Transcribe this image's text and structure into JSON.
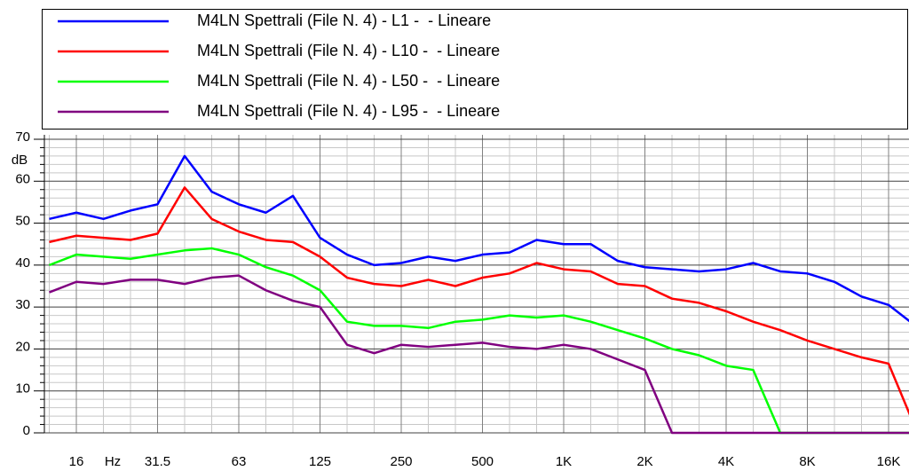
{
  "chart_data": {
    "type": "line",
    "x_label": "Hz",
    "y_label": "dB",
    "categories": [
      null,
      "16",
      null,
      null,
      "31.5",
      null,
      null,
      "63",
      null,
      null,
      "125",
      null,
      null,
      "250",
      null,
      null,
      "500",
      null,
      null,
      "1K",
      null,
      null,
      "2K",
      null,
      null,
      "4K",
      null,
      null,
      "8K",
      null,
      null,
      "16K",
      null
    ],
    "series": [
      {
        "name": "M4LN Spettrali (File N. 4) - L1 -  - Lineare",
        "color": "#0000ff",
        "values": [
          51,
          52.5,
          51,
          53,
          54.5,
          66,
          57.5,
          54.5,
          52.5,
          56.5,
          46.5,
          42.5,
          40,
          40.5,
          42,
          41,
          42.5,
          43,
          46,
          45,
          45,
          41,
          39.5,
          39,
          38.5,
          39,
          40.5,
          38.5,
          38,
          36,
          32.5,
          30.5,
          25.5
        ]
      },
      {
        "name": "M4LN Spettrali (File N. 4) - L10 -  - Lineare",
        "color": "#ff0000",
        "values": [
          45.5,
          47,
          46.5,
          46,
          47.5,
          58.5,
          51,
          48,
          46,
          45.5,
          42,
          37,
          35.5,
          35,
          36.5,
          35,
          37,
          38,
          40.5,
          39,
          38.5,
          35.5,
          35,
          32,
          31,
          29,
          26.5,
          24.5,
          22,
          20,
          18,
          16.5,
          1
        ]
      },
      {
        "name": "M4LN Spettrali (File N. 4) - L50 -  - Lineare",
        "color": "#00ff00",
        "values": [
          40,
          42.5,
          42,
          41.5,
          42.5,
          43.5,
          44,
          42.5,
          39.5,
          37.5,
          34,
          26.5,
          25.5,
          25.5,
          25,
          26.5,
          27,
          28,
          27.5,
          28,
          26.5,
          24.5,
          22.5,
          20,
          18.5,
          16,
          15,
          0,
          0,
          0,
          0,
          0,
          0
        ]
      },
      {
        "name": "M4LN Spettrali (File N. 4) - L95 -  - Lineare",
        "color": "#800080",
        "values": [
          33.5,
          36,
          35.5,
          36.5,
          36.5,
          35.5,
          37,
          37.5,
          34,
          31.5,
          30,
          21,
          19,
          21,
          20.5,
          21,
          21.5,
          20.5,
          20,
          21,
          20,
          17.5,
          15,
          0,
          0,
          0,
          0,
          0,
          0,
          0,
          0,
          0,
          0
        ]
      }
    ],
    "ylim": [
      0,
      70
    ],
    "yticks": [
      0,
      10,
      20,
      30,
      40,
      50,
      60,
      70
    ],
    "grid": true
  }
}
